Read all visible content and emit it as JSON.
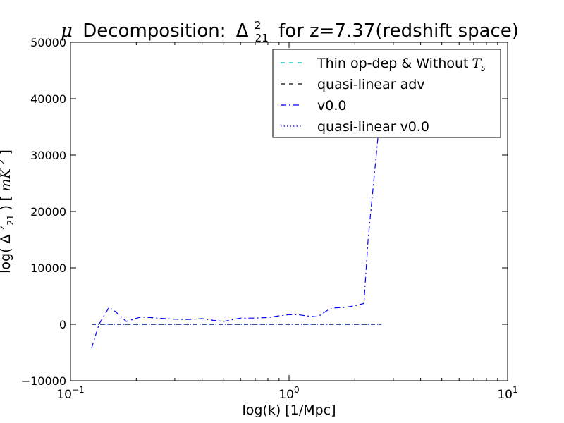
{
  "chart_data": {
    "type": "line",
    "title": {
      "prefix": "μ",
      "main": "Decomposition:",
      "symbol": "Δ",
      "sup": "2",
      "sub": "21",
      "suffix": "for z=7.37(redshift space)"
    },
    "xlabel": "log(k) [1/Mpc]",
    "ylabel": {
      "prefix": "log(",
      "symbol": "Δ",
      "sup": "2",
      "sub": "21",
      "mid": ") [",
      "unit": "mK",
      "unit_sup": "2",
      "suffix": "]"
    },
    "x_scale": "log",
    "xlim": [
      0.1,
      10
    ],
    "ylim": [
      -10000,
      50000
    ],
    "x_ticks": [
      {
        "value": 0.1,
        "base": "10",
        "exp": "−1"
      },
      {
        "value": 1,
        "base": "10",
        "exp": "0"
      },
      {
        "value": 10,
        "base": "10",
        "exp": "1"
      }
    ],
    "y_ticks": [
      {
        "value": -10000,
        "label": "−10000"
      },
      {
        "value": 0,
        "label": "0"
      },
      {
        "value": 10000,
        "label": "10000"
      },
      {
        "value": 20000,
        "label": "20000"
      },
      {
        "value": 30000,
        "label": "30000"
      },
      {
        "value": 40000,
        "label": "40000"
      },
      {
        "value": 50000,
        "label": "50000"
      }
    ],
    "grid": false,
    "legend_position": "top-right",
    "series": [
      {
        "name": "Thin op-dep & Without",
        "name_math": "T",
        "name_math_sub": "s",
        "color": "#00bfbf",
        "style": "dashed",
        "x": [
          0.125,
          2.65
        ],
        "y": [
          0,
          0
        ]
      },
      {
        "name": "quasi-linear adv",
        "color": "#000000",
        "style": "dashed",
        "x": [
          0.125,
          2.65
        ],
        "y": [
          0,
          0
        ]
      },
      {
        "name": "v0.0",
        "color": "#0000ff",
        "style": "dashdot",
        "x": [
          0.125,
          0.135,
          0.15,
          0.16,
          0.18,
          0.21,
          0.25,
          0.3,
          0.35,
          0.4,
          0.45,
          0.5,
          0.6,
          0.7,
          0.8,
          0.9,
          1.0,
          1.1,
          1.2,
          1.35,
          1.5,
          1.6,
          1.8,
          2.0,
          2.2,
          2.3,
          2.55
        ],
        "y": [
          -4200,
          0,
          3000,
          2300,
          500,
          1300,
          1100,
          900,
          850,
          1000,
          700,
          500,
          1100,
          1100,
          1200,
          1500,
          1700,
          1700,
          1500,
          1300,
          2500,
          2900,
          3000,
          3300,
          3700,
          15000,
          33000
        ]
      },
      {
        "name": "quasi-linear v0.0",
        "color": "#0000ff",
        "style": "dotted",
        "x": [
          0.125,
          2.65
        ],
        "y": [
          0,
          0
        ]
      }
    ]
  }
}
